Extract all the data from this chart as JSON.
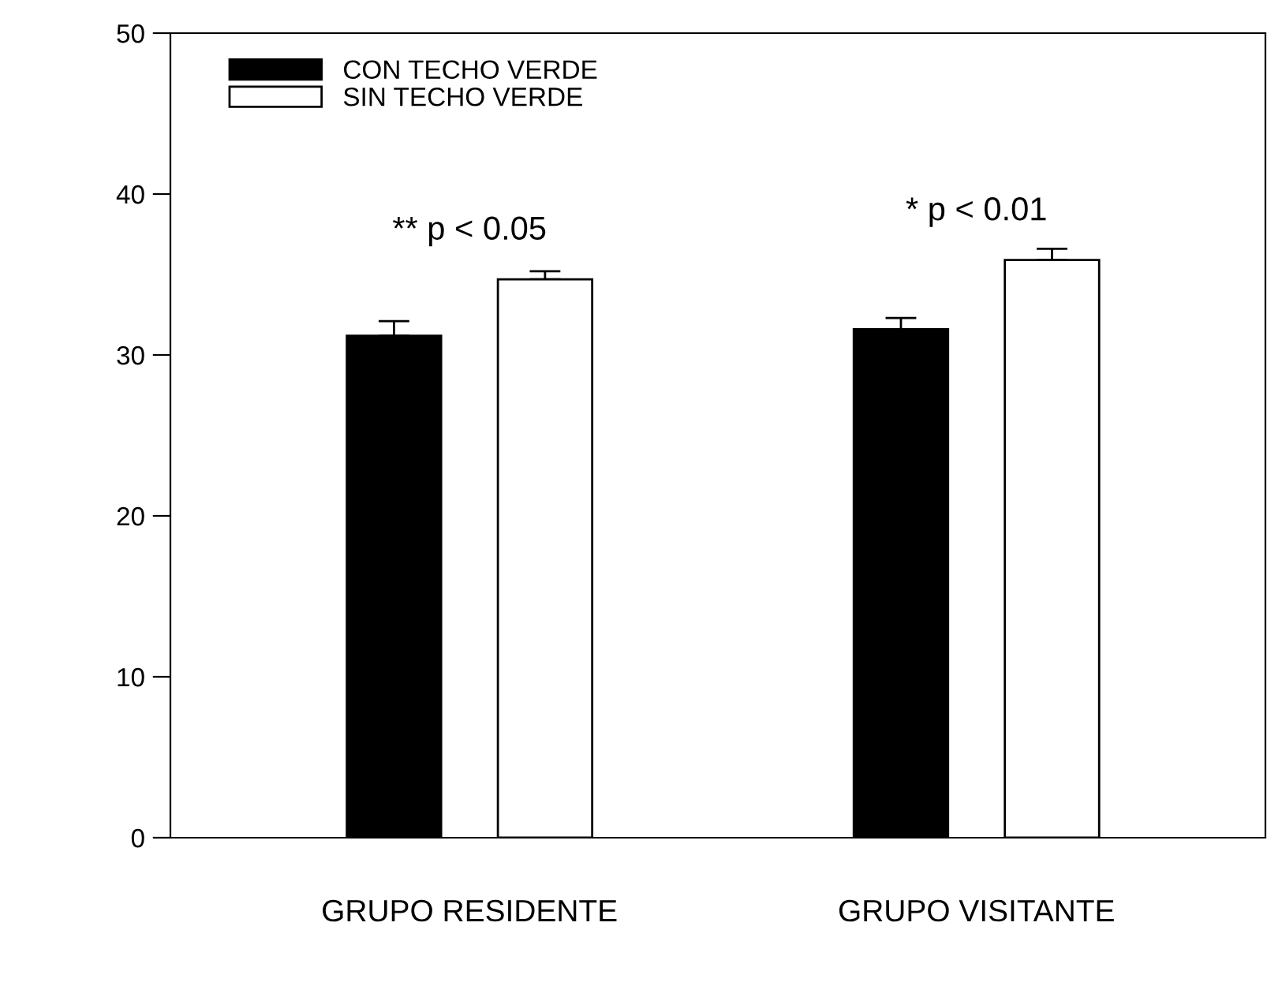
{
  "chart_data": {
    "type": "bar",
    "categories": [
      "GRUPO RESIDENTE",
      "GRUPO VISITANTE"
    ],
    "series": [
      {
        "name": "CON TECHO VERDE",
        "color": "#000000",
        "values": [
          31.2,
          31.6
        ],
        "errors": [
          [
            31.2,
            32.1
          ],
          [
            31.6,
            32.3
          ]
        ]
      },
      {
        "name": "SIN TECHO VERDE",
        "color": "#ffffff",
        "values": [
          34.7,
          35.9
        ],
        "errors": [
          [
            34.7,
            35.2
          ],
          [
            35.9,
            36.6
          ]
        ]
      }
    ],
    "ylim": [
      0,
      50
    ],
    "yticks": [
      0,
      10,
      20,
      30,
      40,
      50
    ],
    "grid": false,
    "legend": "top left",
    "annotations": [
      "** p < 0.05",
      "* p < 0.01"
    ]
  }
}
